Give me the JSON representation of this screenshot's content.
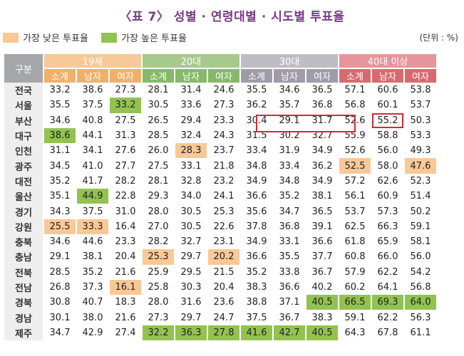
{
  "title": "〈표 7〉 성별 · 연령대별 · 시도별 투표율",
  "legend": {
    "low": "가장 낮은 투표율",
    "high": "가장 높은 투표율"
  },
  "colors": {
    "low": "#f9c897",
    "high": "#92c250",
    "box": "#d8282e",
    "title": "#7b3a86"
  },
  "unit": "(단위 : %)",
  "corner": "구분",
  "groups": [
    "19세",
    "20대",
    "30대",
    "40대 이상"
  ],
  "subheaders": [
    "소계",
    "남자",
    "여자"
  ],
  "rows": [
    {
      "region": "전국",
      "values": [
        "33.2",
        "38.6",
        "27.3",
        "28.1",
        "31.4",
        "24.6",
        "35.5",
        "34.6",
        "36.5",
        "57.1",
        "60.6",
        "53.8"
      ]
    },
    {
      "region": "서울",
      "values": [
        "35.5",
        "37.5",
        "33.2",
        "30.5",
        "33.6",
        "27.3",
        "36.2",
        "35.7",
        "36.8",
        "56.8",
        "60.1",
        "53.7"
      ]
    },
    {
      "region": "부산",
      "values": [
        "34.6",
        "40.8",
        "27.5",
        "26.5",
        "29.4",
        "23.3",
        "30.4",
        "29.1",
        "31.7",
        "52.6",
        "55.2",
        "50.3"
      ]
    },
    {
      "region": "대구",
      "values": [
        "38.6",
        "44.1",
        "31.3",
        "28.5",
        "32.4",
        "24.3",
        "31.5",
        "30.2",
        "32.7",
        "55.9",
        "58.8",
        "53.3"
      ]
    },
    {
      "region": "인천",
      "values": [
        "31.1",
        "34.1",
        "27.6",
        "26.0",
        "28.3",
        "23.7",
        "33.4",
        "31.9",
        "34.9",
        "52.6",
        "56.0",
        "49.3"
      ]
    },
    {
      "region": "광주",
      "values": [
        "34.5",
        "41.0",
        "27.7",
        "27.5",
        "33.1",
        "21.8",
        "34.8",
        "33.4",
        "36.2",
        "52.5",
        "58.0",
        "47.6"
      ]
    },
    {
      "region": "대전",
      "values": [
        "35.2",
        "41.7",
        "28.2",
        "28.1",
        "32.8",
        "23.2",
        "34.9",
        "34.8",
        "34.9",
        "57.2",
        "62.6",
        "52.3"
      ]
    },
    {
      "region": "울산",
      "values": [
        "35.1",
        "44.9",
        "22.8",
        "29.3",
        "34.0",
        "24.1",
        "36.6",
        "35.2",
        "38.1",
        "56.1",
        "60.9",
        "51.4"
      ]
    },
    {
      "region": "경기",
      "values": [
        "34.3",
        "37.5",
        "31.0",
        "28.0",
        "30.5",
        "25.3",
        "35.6",
        "34.7",
        "36.5",
        "53.7",
        "57.3",
        "50.2"
      ]
    },
    {
      "region": "강원",
      "values": [
        "25.5",
        "33.3",
        "16.4",
        "27.0",
        "30.5",
        "22.6",
        "37.8",
        "36.8",
        "39.1",
        "62.5",
        "66.3",
        "59.1"
      ]
    },
    {
      "region": "충북",
      "values": [
        "34.6",
        "44.6",
        "23.3",
        "28.2",
        "32.7",
        "23.1",
        "34.9",
        "33.1",
        "36.6",
        "61.8",
        "65.9",
        "58.1"
      ]
    },
    {
      "region": "충남",
      "values": [
        "29.1",
        "38.1",
        "20.4",
        "25.3",
        "29.7",
        "20.2",
        "36.6",
        "35.5",
        "37.7",
        "60.8",
        "66.0",
        "56.0"
      ]
    },
    {
      "region": "전북",
      "values": [
        "28.5",
        "35.2",
        "21.6",
        "25.9",
        "29.5",
        "21.5",
        "35.2",
        "33.8",
        "36.7",
        "57.9",
        "62.2",
        "54.2"
      ]
    },
    {
      "region": "전남",
      "values": [
        "26.8",
        "37.3",
        "16.1",
        "25.8",
        "30.3",
        "20.4",
        "38.3",
        "36.6",
        "40.2",
        "60.2",
        "64.1",
        "56.8"
      ]
    },
    {
      "region": "경북",
      "values": [
        "30.8",
        "40.7",
        "18.3",
        "28.0",
        "31.6",
        "23.6",
        "38.8",
        "37.1",
        "40.5",
        "66.5",
        "69.3",
        "64.0"
      ]
    },
    {
      "region": "경남",
      "values": [
        "30.1",
        "38.0",
        "21.6",
        "27.3",
        "29.7",
        "24.7",
        "37.5",
        "36.7",
        "38.3",
        "59.1",
        "62.2",
        "56.3"
      ]
    },
    {
      "region": "제주",
      "values": [
        "34.7",
        "42.9",
        "27.4",
        "32.2",
        "36.3",
        "27.8",
        "41.6",
        "42.7",
        "40.5",
        "64.3",
        "67.8",
        "61.1"
      ]
    }
  ],
  "highlights": {
    "low": [
      [
        9,
        0
      ],
      [
        9,
        1
      ],
      [
        13,
        2
      ],
      [
        4,
        4
      ],
      [
        11,
        3
      ],
      [
        11,
        5
      ],
      [
        5,
        9
      ],
      [
        5,
        11
      ]
    ],
    "high": [
      [
        3,
        0
      ],
      [
        7,
        1
      ],
      [
        1,
        2
      ],
      [
        16,
        3
      ],
      [
        16,
        4
      ],
      [
        16,
        5
      ],
      [
        16,
        6
      ],
      [
        16,
        7
      ],
      [
        16,
        8
      ],
      [
        14,
        8
      ],
      [
        14,
        9
      ],
      [
        14,
        10
      ],
      [
        14,
        11
      ]
    ],
    "boxed": [
      [
        2,
        10
      ]
    ]
  }
}
